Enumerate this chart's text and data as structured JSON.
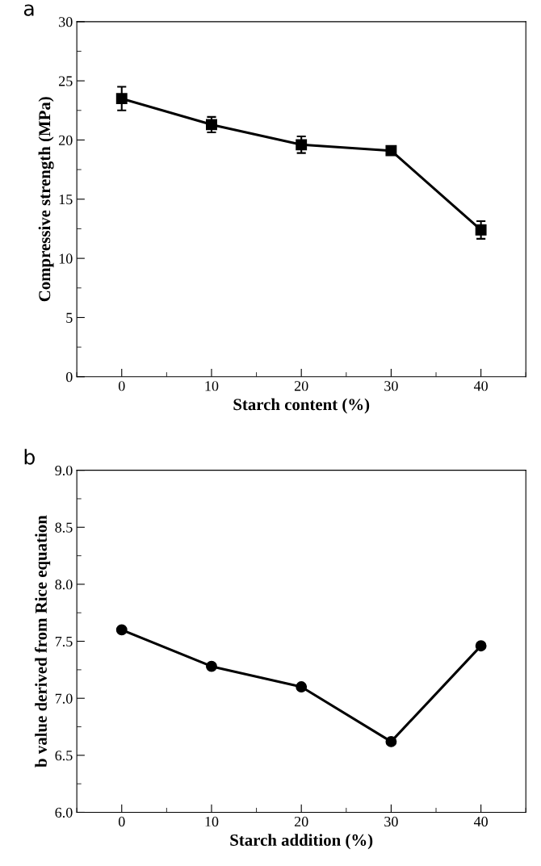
{
  "chart_data": [
    {
      "type": "line",
      "annotations": [
        "a"
      ],
      "xlabel": "Starch content (%)",
      "ylabel": "Compressive strength (MPa)",
      "x": [
        0,
        10,
        20,
        30,
        40
      ],
      "xlim": [
        -5,
        45
      ],
      "xticks": [
        0,
        10,
        20,
        30,
        40
      ],
      "ylim": [
        0,
        30
      ],
      "yticks": [
        0,
        5,
        10,
        15,
        20,
        25,
        30
      ],
      "series": [
        {
          "color": "#000000",
          "values": [
            23.5,
            21.3,
            19.6,
            19.1,
            12.4
          ],
          "errors": [
            1.0,
            0.65,
            0.7,
            0.3,
            0.75
          ]
        }
      ],
      "marker": "square",
      "line_style": "solid",
      "grid": false,
      "legend": false
    },
    {
      "type": "line",
      "annotations": [
        "b"
      ],
      "xlabel": "Starch addition (%)",
      "ylabel": "b value derived from Rice equation",
      "x": [
        0,
        10,
        20,
        30,
        40
      ],
      "xlim": [
        -5,
        45
      ],
      "xticks": [
        0,
        10,
        20,
        30,
        40
      ],
      "ylim": [
        6.0,
        9.0
      ],
      "yticks": [
        {
          "value": 6.0,
          "label": "6.0"
        },
        {
          "value": 6.5,
          "label": "6.5"
        },
        {
          "value": 7.0,
          "label": "7.0"
        },
        {
          "value": 7.5,
          "label": "7.5"
        },
        {
          "value": 8.0,
          "label": "8.0"
        },
        {
          "value": 8.5,
          "label": "8.5"
        },
        {
          "value": 9.0,
          "label": "9.0"
        }
      ],
      "series": [
        {
          "color": "#000000",
          "values": [
            7.6,
            7.28,
            7.1,
            6.62,
            7.46
          ]
        }
      ],
      "marker": "circle",
      "line_style": "solid",
      "grid": false,
      "legend": false
    }
  ]
}
